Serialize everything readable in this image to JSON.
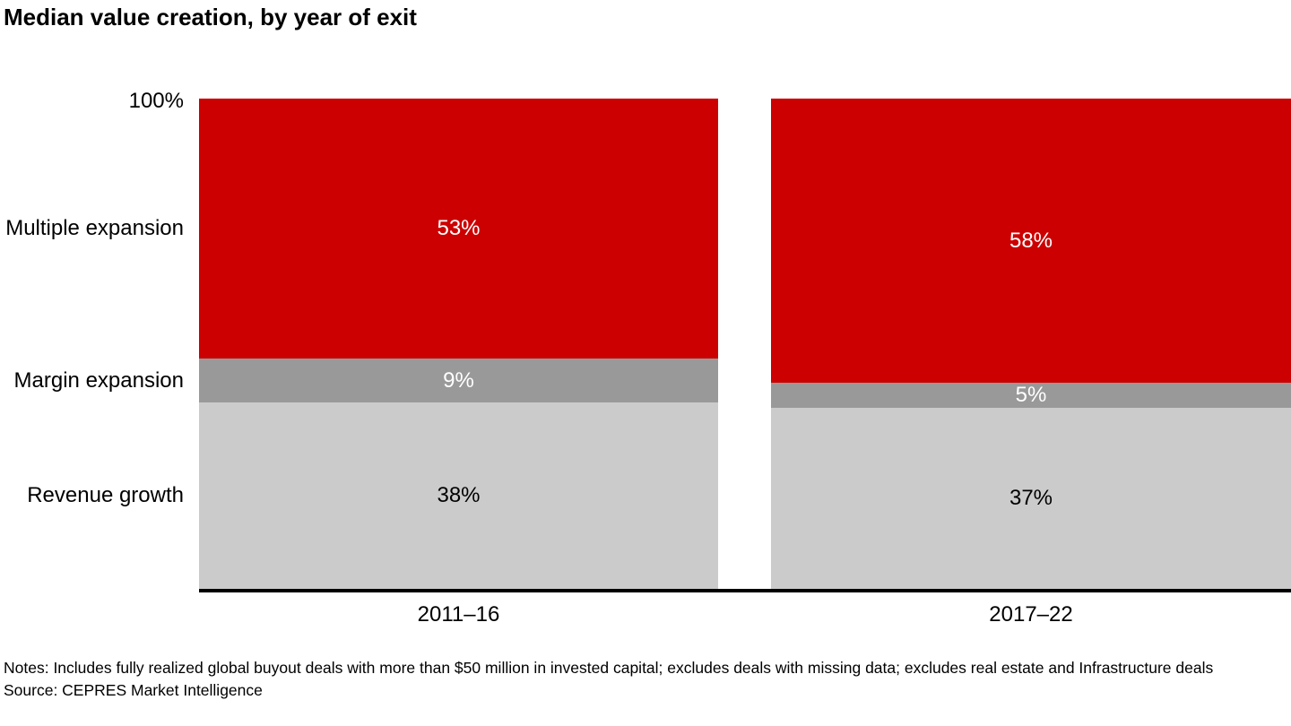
{
  "title": "Median value creation, by year of exit",
  "chart_data": {
    "type": "bar",
    "subtype": "stacked-100-percent",
    "orientation": "vertical",
    "categories": [
      "2011–16",
      "2017–22"
    ],
    "series": [
      {
        "name": "Multiple expansion",
        "color": "#cc0000",
        "label_color": "#ffffff",
        "values": [
          53,
          58
        ]
      },
      {
        "name": "Margin expansion",
        "color": "#999999",
        "label_color": "#ffffff",
        "values": [
          9,
          5
        ]
      },
      {
        "name": "Revenue growth",
        "color": "#cbcbcb",
        "label_color": "#000000",
        "values": [
          38,
          37
        ]
      }
    ],
    "series_order_note": "listed top-to-bottom as stacked in the chart",
    "value_suffix": "%",
    "axis_top_label": "100%",
    "ylim": [
      0,
      100
    ],
    "grid": false,
    "legend_position": "left-inline-row-labels",
    "axis_line_color": "#000000"
  },
  "notes": "Notes: Includes fully realized global buyout deals with more than $50 million in invested capital; excludes deals with missing data; excludes real estate and Infrastructure deals",
  "source": "Source: CEPRES Market Intelligence"
}
